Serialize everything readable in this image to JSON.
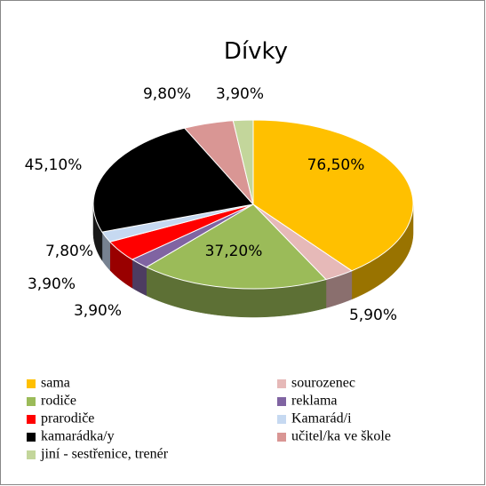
{
  "chart_data": {
    "type": "pie3d",
    "title": "Dívky",
    "categories": [
      "sama",
      "sourozenec",
      "rodiče",
      "reklama",
      "prarodiče",
      "Kamarád/i",
      "kamarádka/y",
      "učitel/ka ve škole",
      "jiní - sestřenice, trenér"
    ],
    "values": [
      76.5,
      5.9,
      37.2,
      3.9,
      7.8,
      3.9,
      45.1,
      9.8,
      3.9
    ],
    "value_labels": [
      "76,50%",
      "5,90%",
      "37,20%",
      "3,90%",
      "7,80%",
      "3,90%",
      "45,10%",
      "9,80%",
      "3,90%"
    ],
    "colors": [
      "#FFC000",
      "#E6B9B8",
      "#9BBB59",
      "#8064A2",
      "#FF0000",
      "#C6D9F1",
      "#000000",
      "#D99694",
      "#C3D69B"
    ],
    "legend": "bottom"
  }
}
